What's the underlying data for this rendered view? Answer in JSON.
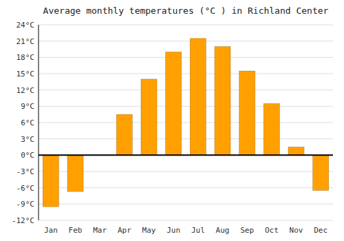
{
  "chart_data": {
    "type": "bar",
    "title": "Average monthly temperatures (°C ) in Richland Center",
    "categories": [
      "Jan",
      "Feb",
      "Mar",
      "Apr",
      "May",
      "Jun",
      "Jul",
      "Aug",
      "Sep",
      "Oct",
      "Nov",
      "Dec"
    ],
    "values": [
      -9.5,
      -6.7,
      0.0,
      7.5,
      14.0,
      19.0,
      21.5,
      20.0,
      15.5,
      9.5,
      1.5,
      -6.5
    ],
    "color": "#FFA000",
    "ylim": [
      -12,
      24
    ],
    "yticks": [
      {
        "value": -12,
        "label": "-12°C"
      },
      {
        "value": -9,
        "label": "-9°C"
      },
      {
        "value": -6,
        "label": "-6°C"
      },
      {
        "value": -3,
        "label": "-3°C"
      },
      {
        "value": 0,
        "label": "0°C"
      },
      {
        "value": 3,
        "label": "3°C"
      },
      {
        "value": 6,
        "label": "6°C"
      },
      {
        "value": 9,
        "label": "9°C"
      },
      {
        "value": 12,
        "label": "12°C"
      },
      {
        "value": 15,
        "label": "15°C"
      },
      {
        "value": 18,
        "label": "18°C"
      },
      {
        "value": 21,
        "label": "21°C"
      },
      {
        "value": 24,
        "label": "24°C"
      }
    ],
    "grid": true
  }
}
